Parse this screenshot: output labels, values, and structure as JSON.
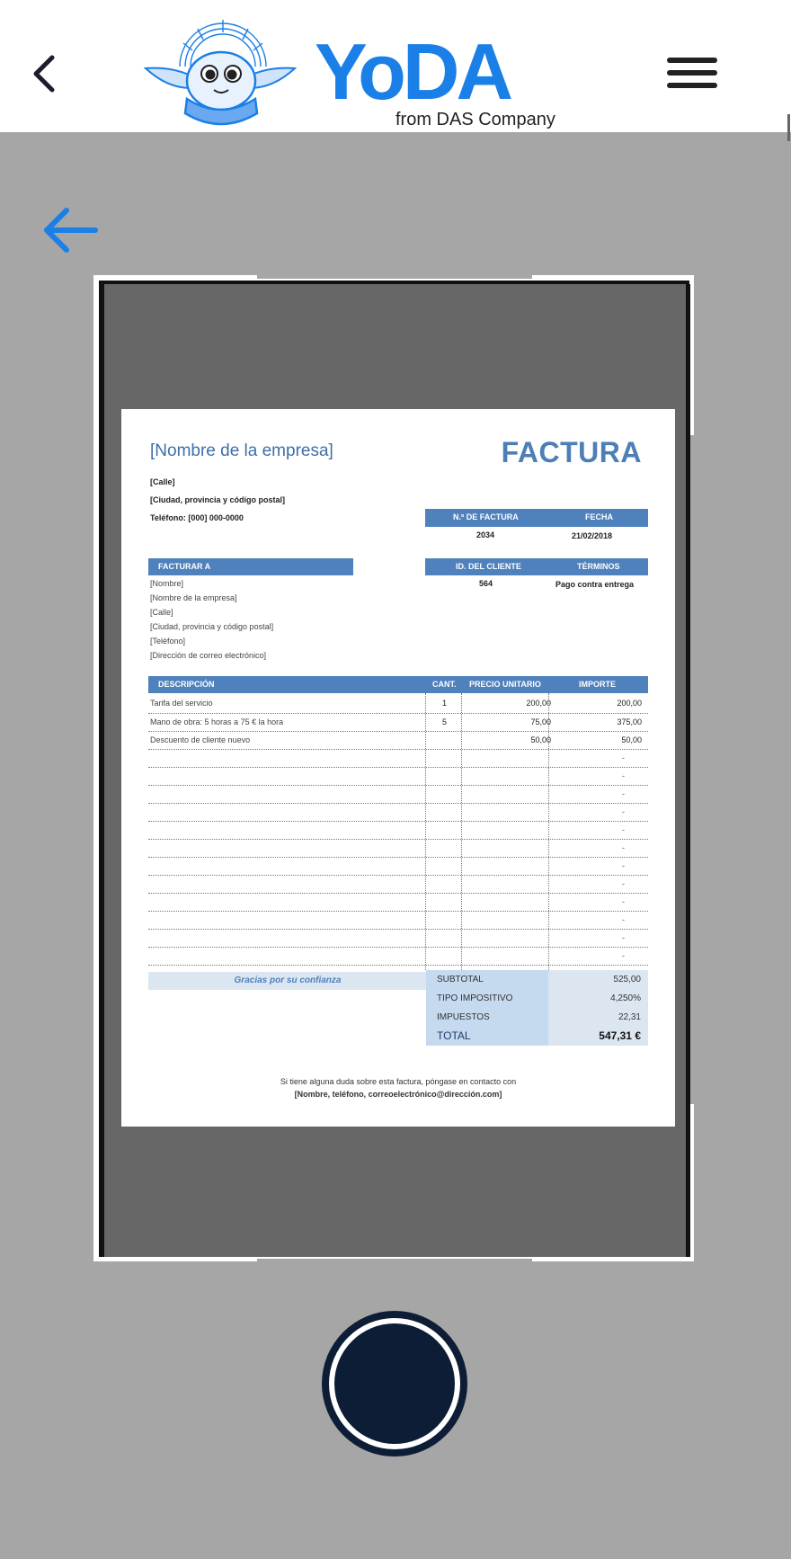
{
  "header": {
    "back_icon": "chevron-left-icon",
    "menu_icon": "hamburger-menu-icon",
    "logo": {
      "word": "YoDA",
      "sub": "from DAS Company",
      "brand_color": "#1a7fe6"
    }
  },
  "scan": {
    "back_icon": "arrow-left-icon",
    "accent": "#1a7fe6"
  },
  "invoice": {
    "company": "[Nombre de la empresa]",
    "title": "FACTURA",
    "street": "[Calle]",
    "city": "[Ciudad, provincia y código postal]",
    "phone": "Teléfono: [000] 000-0000",
    "invoice_no_label": "N.º DE FACTURA",
    "date_label": "FECHA",
    "invoice_no": "2034",
    "date": "21/02/2018",
    "bill_to_label": "FACTURAR A",
    "client_id_label": "ID. DEL CLIENTE",
    "terms_label": "TÉRMINOS",
    "client_id": "564",
    "terms": "Pago contra entrega",
    "bill_to": [
      "[Nombre]",
      "[Nombre de la empresa]",
      "[Calle]",
      "[Ciudad, provincia y código postal]",
      "[Teléfono]",
      "[Dirección de correo electrónico]"
    ],
    "columns": {
      "desc": "DESCRIPCIÓN",
      "qty": "CANT.",
      "unit": "PRECIO UNITARIO",
      "amount": "IMPORTE"
    },
    "items": [
      {
        "desc": "Tarifa del servicio",
        "qty": "1",
        "unit": "200,00",
        "amount": "200,00"
      },
      {
        "desc": "Mano de obra: 5 horas a 75 € la hora",
        "qty": "5",
        "unit": "75,00",
        "amount": "375,00"
      },
      {
        "desc": "Descuento de cliente nuevo",
        "qty": "",
        "unit": "50,00",
        "amount": "50,00"
      }
    ],
    "empty_mark": "-",
    "thanks": "Gracias por su confianza",
    "subtotal_label": "SUBTOTAL",
    "subtotal": "525,00",
    "tax_rate_label": "TIPO IMPOSITIVO",
    "tax_rate": "4,250%",
    "tax_label": "IMPUESTOS",
    "tax": "22,31",
    "total_label": "TOTAL",
    "total": "547,31 €",
    "footer1": "Si tiene alguna duda sobre esta factura, póngase en contacto con",
    "footer2": "[Nombre, teléfono, correoelectrónico@dirección.com]",
    "header_color": "#4f81bd"
  },
  "shutter": {
    "icon": "shutter-button",
    "color": "#0d1d36"
  }
}
